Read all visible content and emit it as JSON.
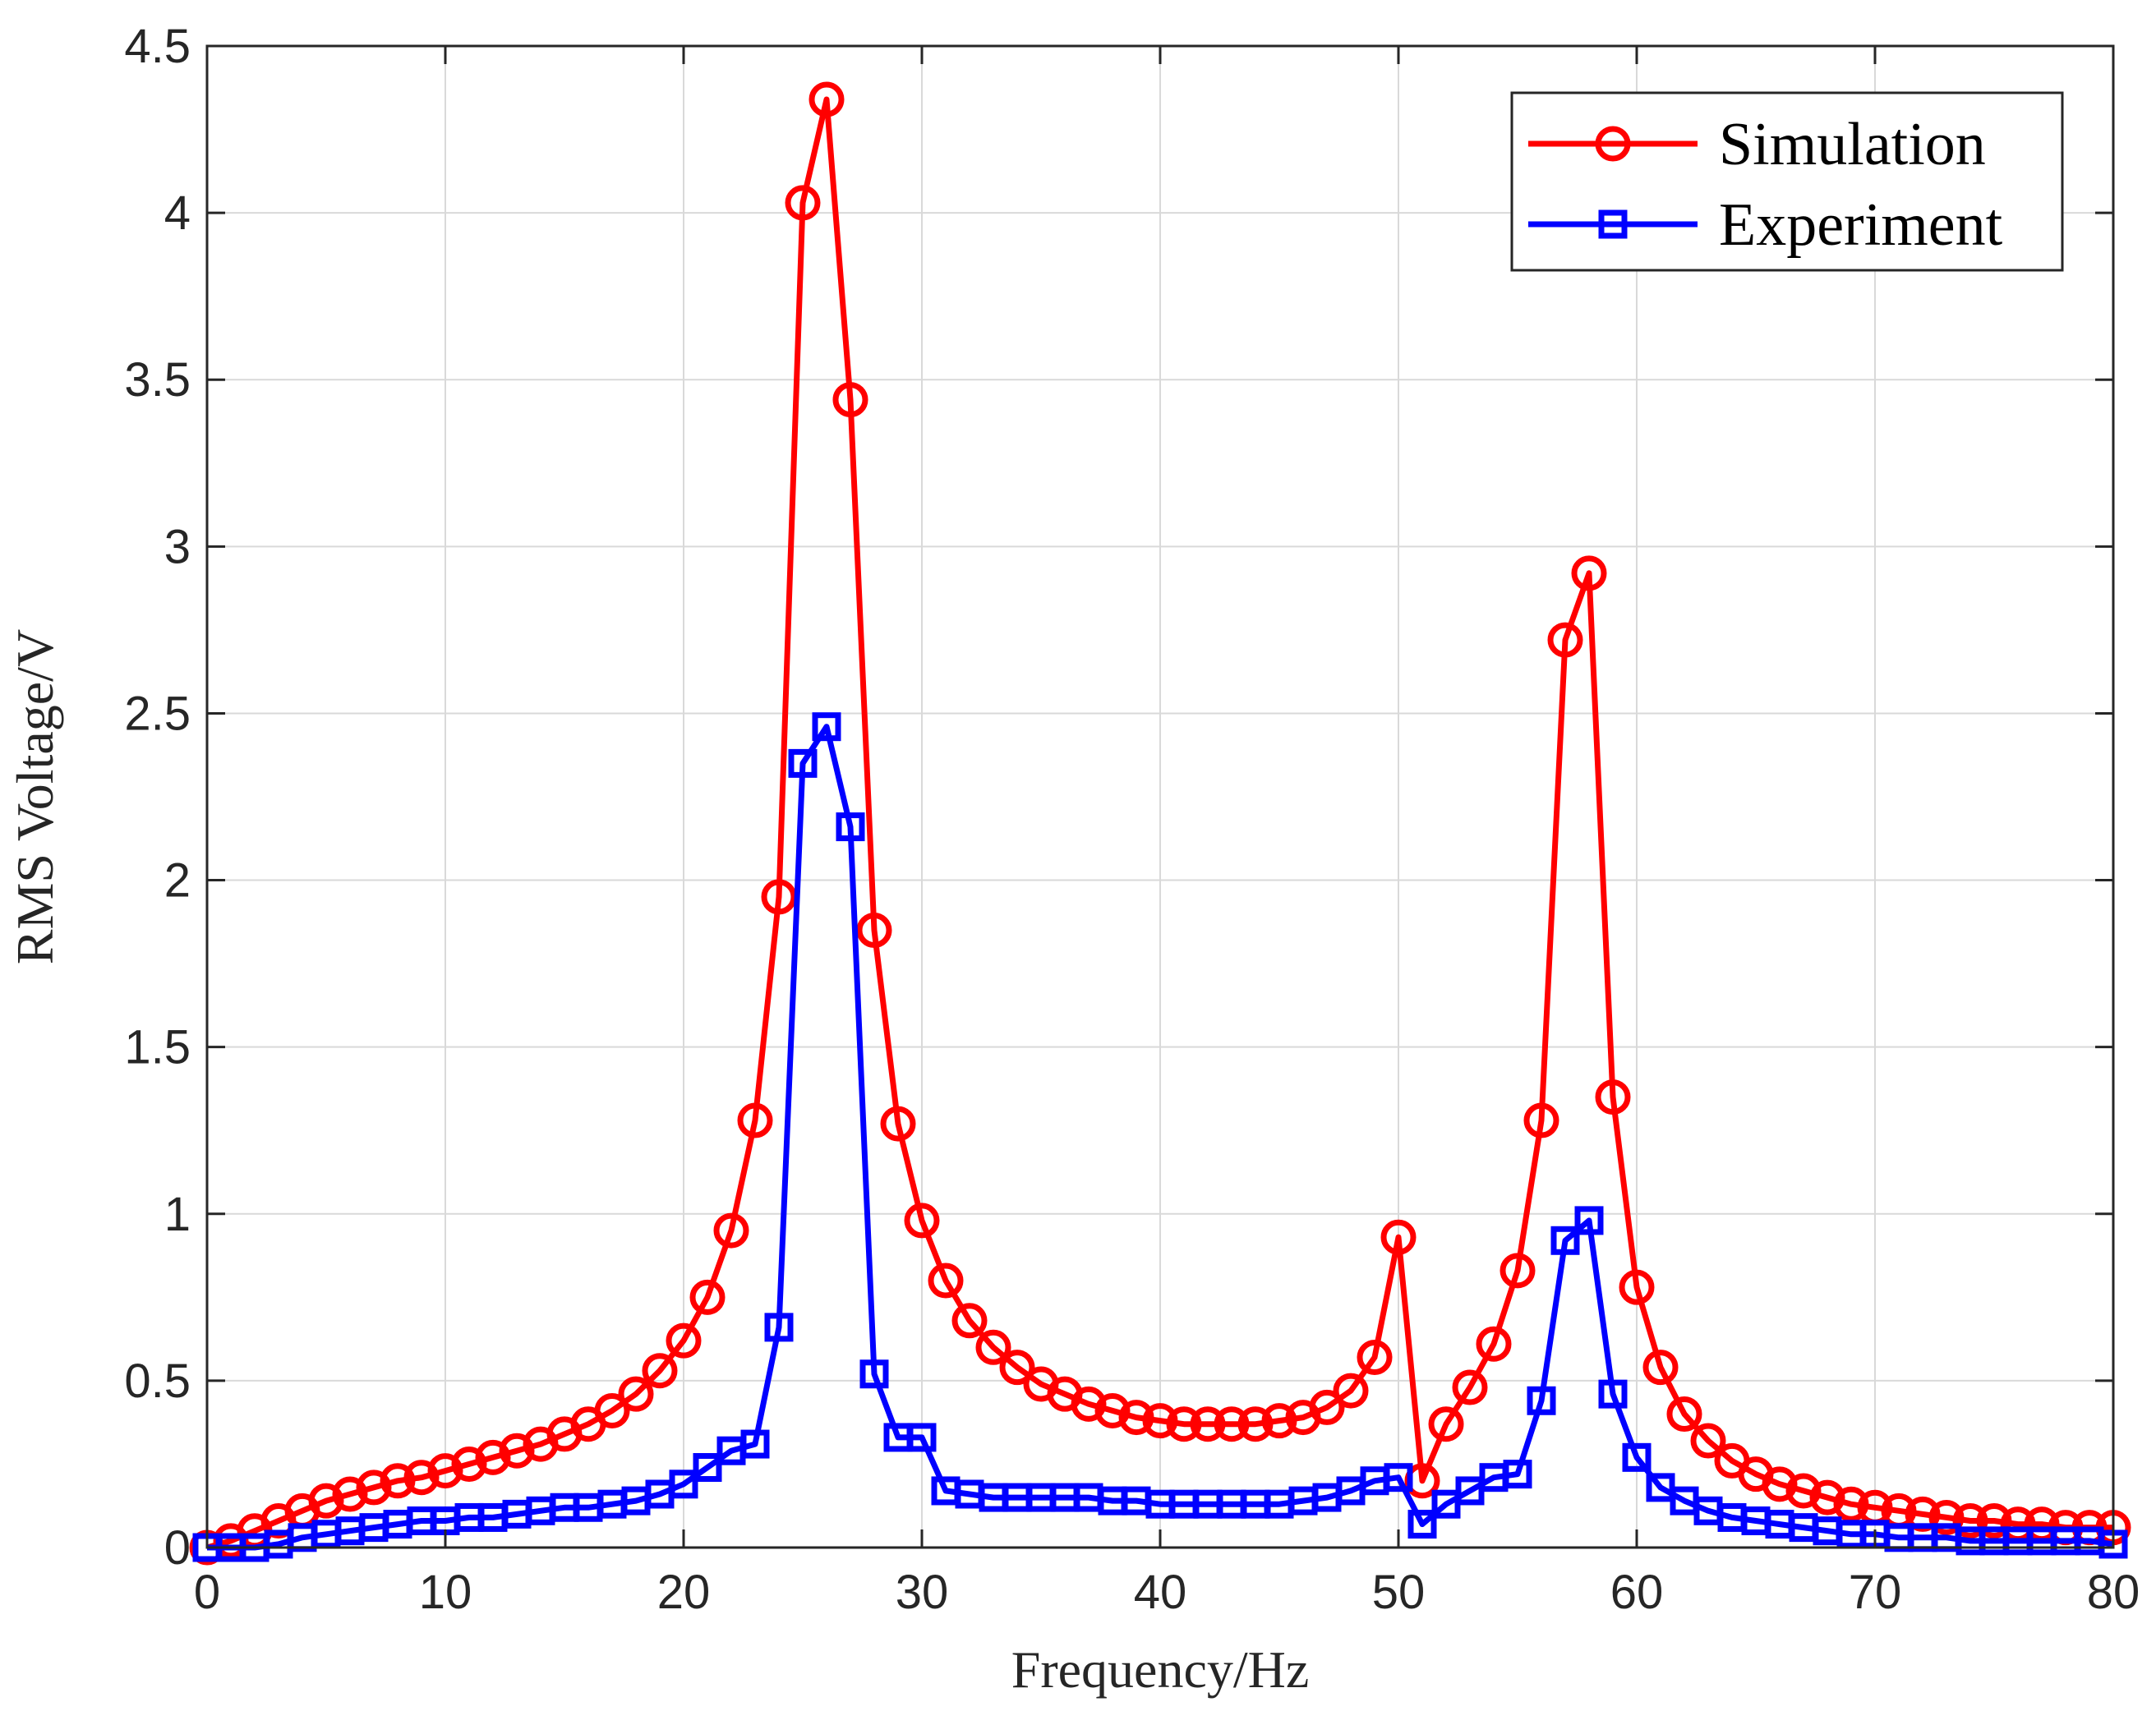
{
  "chart_data": {
    "type": "line",
    "title": "",
    "xlabel": "Frequency/Hz",
    "ylabel": "RMS Voltage/V",
    "xlim": [
      0,
      80
    ],
    "ylim": [
      0,
      4.5
    ],
    "xticks": [
      0,
      10,
      20,
      30,
      40,
      50,
      60,
      70,
      80
    ],
    "xtick_labels": [
      "0",
      "10",
      "20",
      "30",
      "40",
      "50",
      "60",
      "70",
      "80"
    ],
    "yticks": [
      0,
      0.5,
      1,
      1.5,
      2,
      2.5,
      3,
      3.5,
      4,
      4.5
    ],
    "ytick_labels": [
      "0",
      "0.5",
      "1",
      "1.5",
      "2",
      "2.5",
      "3",
      "3.5",
      "4",
      "4.5"
    ],
    "grid": true,
    "legend_position": "top-right",
    "x": [
      0,
      1,
      2,
      3,
      4,
      5,
      6,
      7,
      8,
      9,
      10,
      11,
      12,
      13,
      14,
      15,
      16,
      17,
      18,
      19,
      20,
      21,
      22,
      23,
      24,
      25,
      26,
      27,
      28,
      29,
      30,
      31,
      32,
      33,
      34,
      35,
      36,
      37,
      38,
      39,
      40,
      41,
      42,
      43,
      44,
      45,
      46,
      47,
      48,
      49,
      50,
      51,
      52,
      53,
      54,
      55,
      56,
      57,
      58,
      59,
      60,
      61,
      62,
      63,
      64,
      65,
      66,
      67,
      68,
      69,
      70,
      71,
      72,
      73,
      74,
      75,
      76,
      77,
      78,
      79,
      80
    ],
    "series": [
      {
        "name": "Simulation",
        "color": "#ff0000",
        "marker": "circle",
        "values": [
          0.0,
          0.02,
          0.05,
          0.08,
          0.11,
          0.14,
          0.16,
          0.18,
          0.2,
          0.21,
          0.23,
          0.25,
          0.27,
          0.29,
          0.31,
          0.34,
          0.37,
          0.41,
          0.46,
          0.53,
          0.62,
          0.75,
          0.95,
          1.28,
          1.95,
          4.03,
          4.34,
          3.44,
          1.85,
          1.27,
          0.98,
          0.8,
          0.68,
          0.6,
          0.54,
          0.49,
          0.46,
          0.43,
          0.41,
          0.39,
          0.38,
          0.37,
          0.37,
          0.37,
          0.37,
          0.38,
          0.39,
          0.42,
          0.47,
          0.57,
          0.93,
          0.2,
          0.37,
          0.48,
          0.61,
          0.83,
          1.28,
          2.72,
          2.92,
          1.35,
          0.78,
          0.54,
          0.4,
          0.32,
          0.26,
          0.22,
          0.19,
          0.17,
          0.15,
          0.13,
          0.12,
          0.11,
          0.1,
          0.09,
          0.08,
          0.08,
          0.07,
          0.07,
          0.06,
          0.06,
          0.06
        ]
      },
      {
        "name": "Experiment",
        "color": "#0000ff",
        "marker": "square",
        "values": [
          0.0,
          0.0,
          0.0,
          0.01,
          0.03,
          0.04,
          0.05,
          0.06,
          0.07,
          0.08,
          0.08,
          0.09,
          0.09,
          0.1,
          0.11,
          0.12,
          0.12,
          0.13,
          0.14,
          0.16,
          0.19,
          0.24,
          0.29,
          0.31,
          0.66,
          2.35,
          2.46,
          2.16,
          0.52,
          0.33,
          0.33,
          0.17,
          0.16,
          0.15,
          0.15,
          0.15,
          0.15,
          0.15,
          0.14,
          0.14,
          0.13,
          0.13,
          0.13,
          0.13,
          0.13,
          0.13,
          0.14,
          0.15,
          0.17,
          0.2,
          0.21,
          0.07,
          0.13,
          0.17,
          0.21,
          0.22,
          0.44,
          0.92,
          0.98,
          0.46,
          0.27,
          0.18,
          0.14,
          0.11,
          0.09,
          0.08,
          0.07,
          0.06,
          0.05,
          0.04,
          0.04,
          0.03,
          0.03,
          0.03,
          0.02,
          0.02,
          0.02,
          0.02,
          0.02,
          0.02,
          0.01
        ]
      }
    ]
  }
}
